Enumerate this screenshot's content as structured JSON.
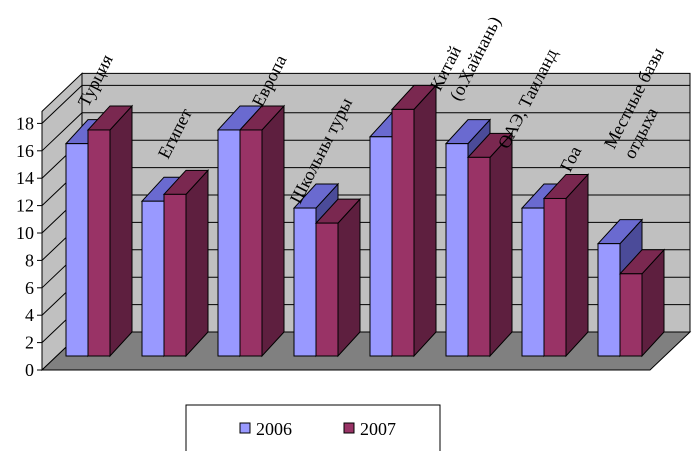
{
  "chart_data": {
    "type": "bar",
    "categories": [
      "Турция",
      "Египет",
      "Европа",
      "Школьны туры",
      "Китай (о.Хайнань)",
      "ОАЭ, Таиланд",
      "Гоа",
      "Местные базы отдыха"
    ],
    "category_lines": [
      [
        "Турция"
      ],
      [
        "Египет"
      ],
      [
        "Европа"
      ],
      [
        "Школьны туры"
      ],
      [
        "Китай",
        "(о.Хайнань)"
      ],
      [
        "ОАЭ, Таиланд"
      ],
      [
        "Гоа"
      ],
      [
        "Местные    базы",
        "отдыха"
      ]
    ],
    "series": [
      {
        "name": "2006",
        "values": [
          15.5,
          11.3,
          16.5,
          10.8,
          16.0,
          15.5,
          10.8,
          8.2
        ],
        "color": "#9999ff",
        "top_color": "#6a6ad0",
        "side_color": "#4b4b99"
      },
      {
        "name": "2007",
        "values": [
          16.5,
          11.8,
          16.5,
          9.7,
          18.0,
          14.5,
          11.5,
          6.0
        ],
        "color": "#993366",
        "top_color": "#7a2850",
        "side_color": "#5e1f3f"
      }
    ],
    "yticks": [
      "0",
      "2",
      "4",
      "6",
      "8",
      "10",
      "12",
      "14",
      "16",
      "18"
    ],
    "ylim": [
      0,
      18
    ],
    "grid": true,
    "legend_position": "bottom",
    "wall_color": "#c0c0c0",
    "floor_color": "#808080",
    "grid_color": "#000000"
  }
}
